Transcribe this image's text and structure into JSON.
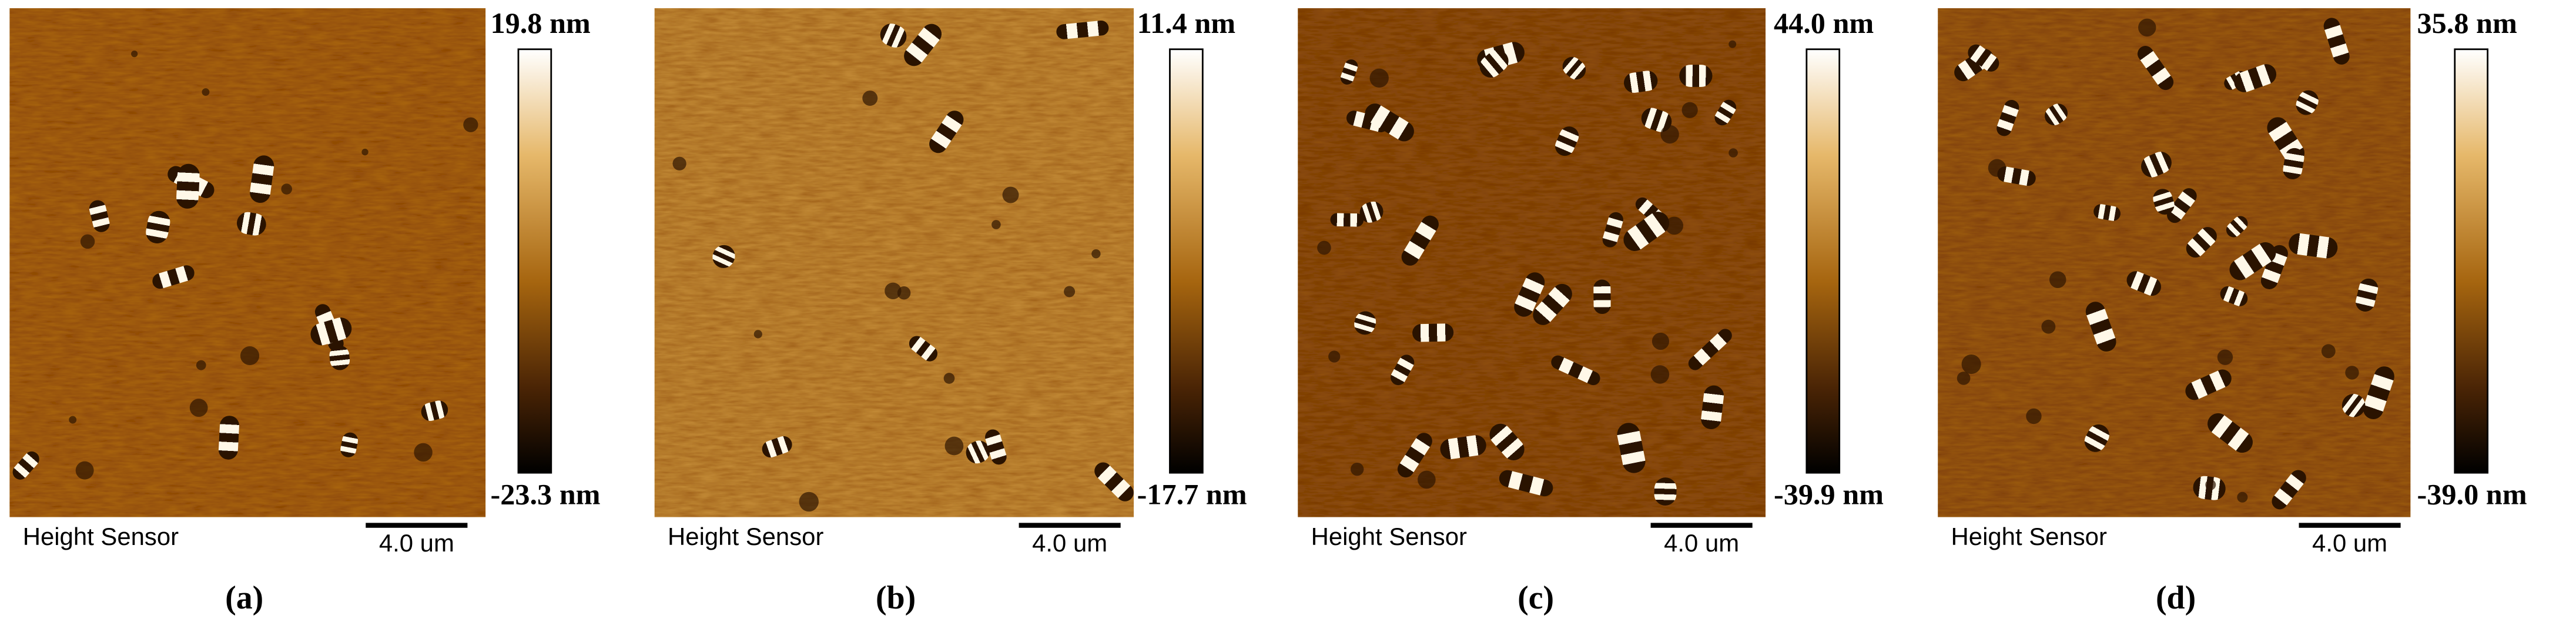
{
  "panels": [
    {
      "max": "19.8 nm",
      "min": "-23.3 nm",
      "sensor": "Height Sensor",
      "scale": "4.0 um",
      "label": "(a)"
    },
    {
      "max": "11.4 nm",
      "min": "-17.7 nm",
      "sensor": "Height Sensor",
      "scale": "4.0 um",
      "label": "(b)"
    },
    {
      "max": "44.0 nm",
      "min": "-39.9 nm",
      "sensor": "Height Sensor",
      "scale": "4.0 um",
      "label": "(c)"
    },
    {
      "max": "35.8 nm",
      "min": "-39.0 nm",
      "sensor": "Height Sensor",
      "scale": "4.0 um",
      "label": "(d)"
    }
  ]
}
